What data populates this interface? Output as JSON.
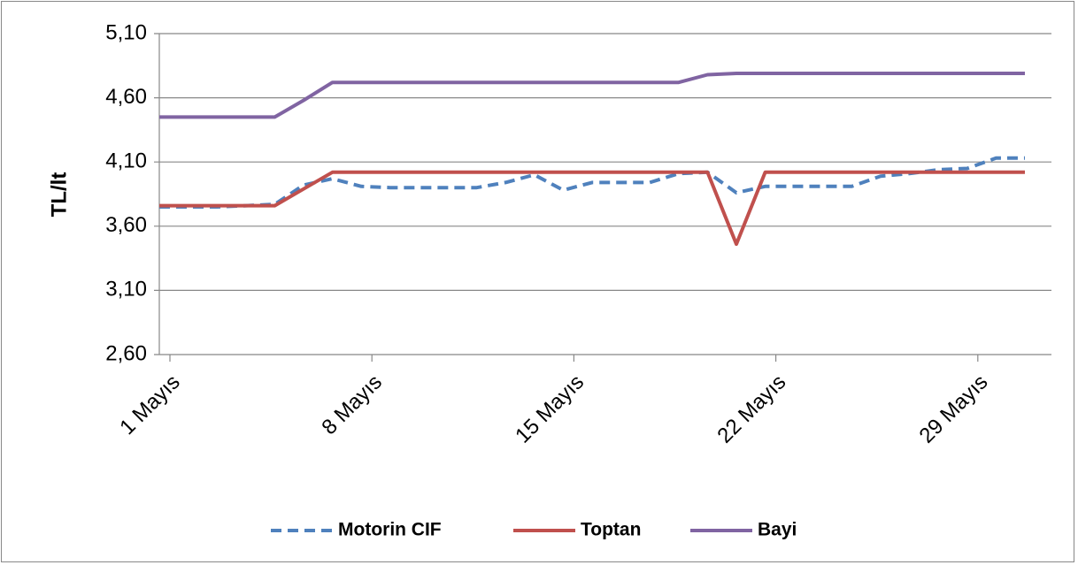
{
  "chart_data": {
    "type": "line",
    "y_label": "TL/lt",
    "categories": [
      "1 Mayıs",
      null,
      null,
      null,
      null,
      null,
      null,
      "8 Mayıs",
      null,
      null,
      null,
      null,
      null,
      null,
      "15 Mayıs",
      null,
      null,
      null,
      null,
      null,
      null,
      "22 Mayıs",
      null,
      null,
      null,
      null,
      null,
      null,
      "29 Mayıs",
      null,
      null
    ],
    "series": [
      {
        "name": "Motorin CIF",
        "color": "#4f81bd",
        "dash": true,
        "values": [
          3.75,
          3.75,
          3.75,
          3.76,
          3.77,
          3.92,
          3.97,
          3.91,
          3.9,
          3.9,
          3.9,
          3.9,
          3.94,
          4.0,
          3.88,
          3.94,
          3.94,
          3.94,
          4.01,
          4.02,
          3.86,
          3.91,
          3.91,
          3.91,
          3.91,
          3.99,
          4.01,
          4.04,
          4.05,
          4.13,
          4.13
        ]
      },
      {
        "name": "Toptan",
        "color": "#c0504d",
        "dash": false,
        "values": [
          3.76,
          3.76,
          3.76,
          3.76,
          3.76,
          3.89,
          4.02,
          4.02,
          4.02,
          4.02,
          4.02,
          4.02,
          4.02,
          4.02,
          4.02,
          4.02,
          4.02,
          4.02,
          4.02,
          4.02,
          3.46,
          4.02,
          4.02,
          4.02,
          4.02,
          4.02,
          4.02,
          4.02,
          4.02,
          4.02,
          4.02
        ]
      },
      {
        "name": "Bayi",
        "color": "#8064a2",
        "dash": false,
        "values": [
          4.45,
          4.45,
          4.45,
          4.45,
          4.45,
          4.58,
          4.72,
          4.72,
          4.72,
          4.72,
          4.72,
          4.72,
          4.72,
          4.72,
          4.72,
          4.72,
          4.72,
          4.72,
          4.72,
          4.78,
          4.79,
          4.79,
          4.79,
          4.79,
          4.79,
          4.79,
          4.79,
          4.79,
          4.79,
          4.79,
          4.79
        ]
      }
    ],
    "ylim": [
      2.6,
      5.1
    ],
    "yticks": [
      {
        "value": 2.6,
        "label": "2,60"
      },
      {
        "value": 3.1,
        "label": "3,10"
      },
      {
        "value": 3.6,
        "label": "3,60"
      },
      {
        "value": 4.1,
        "label": "4,10"
      },
      {
        "value": 4.6,
        "label": "4,60"
      },
      {
        "value": 5.1,
        "label": "5,10"
      }
    ],
    "grid": true,
    "legend": "bottom"
  }
}
